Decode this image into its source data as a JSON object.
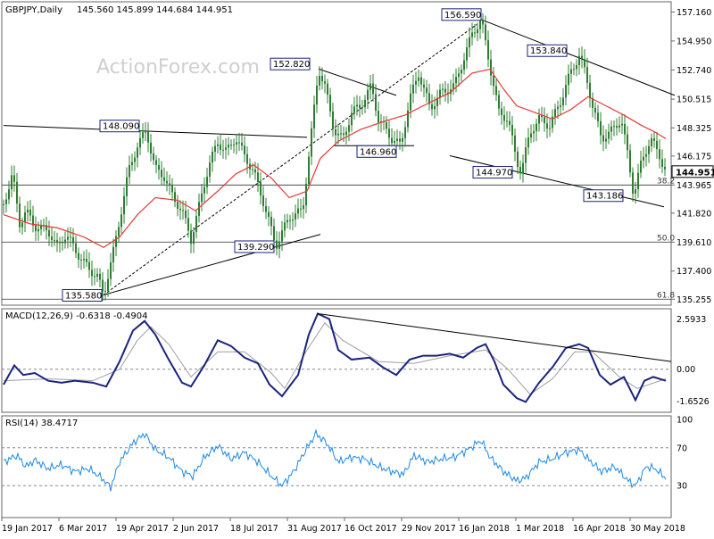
{
  "header": {
    "symbol": "GBPJPY,Daily",
    "ohlc": "145.560 145.899 144.684 144.951"
  },
  "watermark": "ActionForex.com",
  "colors": {
    "candle": "#2e7d32",
    "ema": "#e53935",
    "macd_line": "#1a237e",
    "macd_signal": "#9e9e9e",
    "rsi": "#1e88e5",
    "trendline": "#000000",
    "label_box_border": "#1a237e",
    "last_price_bg": "#ffffff"
  },
  "chart_data": [
    {
      "type": "candlestick",
      "title": "GBPJPY,Daily",
      "ylim": [
        135.255,
        157.5
      ],
      "y_ticks": [
        "157.160",
        "154.950",
        "152.740",
        "150.515",
        "148.325",
        "146.175",
        "143.965",
        "141.820",
        "139.610",
        "137.400",
        "135.255"
      ],
      "x_ticks": [
        "19 Jan 2017",
        "6 Mar 2017",
        "19 Apr 2017",
        "2 Jun 2017",
        "18 Jul 2017",
        "31 Aug 2017",
        "16 Oct 2017",
        "29 Nov 2017",
        "16 Jan 2018",
        "1 Mar 2018",
        "16 Apr 2018",
        "30 May 2018"
      ],
      "last_price": "144.951",
      "price_path": [
        [
          0,
          142.5
        ],
        [
          10,
          144.8
        ],
        [
          18,
          141.0
        ],
        [
          25,
          142.0
        ],
        [
          35,
          140.8
        ],
        [
          50,
          140.5
        ],
        [
          60,
          139.2
        ],
        [
          70,
          140.2
        ],
        [
          85,
          138.5
        ],
        [
          95,
          137.6
        ],
        [
          105,
          137.0
        ],
        [
          112,
          135.58
        ],
        [
          125,
          139.5
        ],
        [
          140,
          145.0
        ],
        [
          150,
          147.0
        ],
        [
          160,
          148.09
        ],
        [
          170,
          145.2
        ],
        [
          180,
          144.6
        ],
        [
          190,
          143.0
        ],
        [
          200,
          142.0
        ],
        [
          210,
          139.8
        ],
        [
          220,
          142.6
        ],
        [
          230,
          145.5
        ],
        [
          240,
          147.2
        ],
        [
          250,
          146.5
        ],
        [
          260,
          147.6
        ],
        [
          270,
          146.2
        ],
        [
          280,
          145.0
        ],
        [
          292,
          142.5
        ],
        [
          305,
          139.29
        ],
        [
          320,
          141.5
        ],
        [
          335,
          142.0
        ],
        [
          345,
          148.0
        ],
        [
          353,
          152.82
        ],
        [
          360,
          151.5
        ],
        [
          370,
          148.2
        ],
        [
          380,
          147.4
        ],
        [
          390,
          149.5
        ],
        [
          400,
          150.0
        ],
        [
          412,
          151.5
        ],
        [
          420,
          149.0
        ],
        [
          435,
          147.5
        ],
        [
          445,
          146.96
        ],
        [
          455,
          150.5
        ],
        [
          465,
          152.5
        ],
        [
          478,
          149.8
        ],
        [
          490,
          151.0
        ],
        [
          505,
          151.5
        ],
        [
          515,
          153.5
        ],
        [
          525,
          155.5
        ],
        [
          535,
          156.59
        ],
        [
          545,
          153.0
        ],
        [
          555,
          149.5
        ],
        [
          565,
          149.0
        ],
        [
          575,
          145.8
        ],
        [
          580,
          144.97
        ],
        [
          590,
          148.0
        ],
        [
          600,
          149.0
        ],
        [
          612,
          148.5
        ],
        [
          625,
          150.5
        ],
        [
          635,
          152.5
        ],
        [
          645,
          153.84
        ],
        [
          652,
          152.5
        ],
        [
          660,
          150.0
        ],
        [
          670,
          147.5
        ],
        [
          680,
          148.0
        ],
        [
          692,
          149.0
        ],
        [
          700,
          146.0
        ],
        [
          706,
          143.186
        ],
        [
          715,
          145.8
        ],
        [
          725,
          147.5
        ],
        [
          735,
          146.2
        ],
        [
          742,
          144.951
        ]
      ],
      "ema_path": [
        [
          0,
          141.7
        ],
        [
          30,
          141.0
        ],
        [
          60,
          140.7
        ],
        [
          90,
          140.0
        ],
        [
          112,
          139.2
        ],
        [
          130,
          140.0
        ],
        [
          150,
          141.7
        ],
        [
          170,
          143.0
        ],
        [
          195,
          142.8
        ],
        [
          215,
          142.0
        ],
        [
          240,
          143.5
        ],
        [
          260,
          144.8
        ],
        [
          280,
          145.5
        ],
        [
          300,
          144.5
        ],
        [
          320,
          143.0
        ],
        [
          340,
          143.5
        ],
        [
          355,
          146.0
        ],
        [
          375,
          147.3
        ],
        [
          400,
          148.2
        ],
        [
          430,
          148.9
        ],
        [
          450,
          149.3
        ],
        [
          470,
          150.0
        ],
        [
          500,
          151.0
        ],
        [
          525,
          152.5
        ],
        [
          545,
          152.8
        ],
        [
          560,
          151.3
        ],
        [
          575,
          150.0
        ],
        [
          595,
          149.5
        ],
        [
          615,
          149.0
        ],
        [
          635,
          149.7
        ],
        [
          655,
          150.7
        ],
        [
          675,
          150.0
        ],
        [
          695,
          149.3
        ],
        [
          715,
          148.5
        ],
        [
          730,
          148.0
        ],
        [
          742,
          147.5
        ]
      ],
      "annotations": [
        "156.590",
        "153.840",
        "152.820",
        "148.090",
        "146.960",
        "144.970",
        "143.186",
        "139.290",
        "135.580"
      ],
      "fib_levels": [
        {
          "label": "38.2",
          "price": 143.965
        },
        {
          "label": "50.0",
          "price": 139.61
        },
        {
          "label": "61.8",
          "price": 135.255
        }
      ]
    },
    {
      "type": "line",
      "title": "MACD(12,26,9) -0.6318 -0.4904",
      "y_ticks": [
        "2.5933",
        "0.00",
        "-1.6526"
      ],
      "ylim": [
        -2.0,
        2.9
      ],
      "macd_path": [
        [
          0,
          -0.8
        ],
        [
          12,
          0.2
        ],
        [
          22,
          -0.3
        ],
        [
          35,
          -0.2
        ],
        [
          50,
          -0.6
        ],
        [
          65,
          -0.7
        ],
        [
          80,
          -0.6
        ],
        [
          100,
          -0.7
        ],
        [
          115,
          -0.9
        ],
        [
          130,
          0.4
        ],
        [
          145,
          2.0
        ],
        [
          158,
          2.5
        ],
        [
          170,
          1.8
        ],
        [
          185,
          0.5
        ],
        [
          200,
          -0.7
        ],
        [
          210,
          -0.9
        ],
        [
          225,
          0.2
        ],
        [
          240,
          1.5
        ],
        [
          255,
          1.2
        ],
        [
          270,
          0.6
        ],
        [
          285,
          0.3
        ],
        [
          298,
          -0.8
        ],
        [
          312,
          -1.4
        ],
        [
          330,
          -0.3
        ],
        [
          342,
          1.8
        ],
        [
          352,
          2.88
        ],
        [
          365,
          2.6
        ],
        [
          375,
          1.0
        ],
        [
          390,
          0.5
        ],
        [
          410,
          0.6
        ],
        [
          425,
          0.1
        ],
        [
          440,
          -0.3
        ],
        [
          455,
          0.5
        ],
        [
          470,
          0.7
        ],
        [
          485,
          0.7
        ],
        [
          500,
          0.8
        ],
        [
          515,
          0.6
        ],
        [
          530,
          1.1
        ],
        [
          540,
          1.3
        ],
        [
          550,
          0.4
        ],
        [
          560,
          -0.8
        ],
        [
          575,
          -1.5
        ],
        [
          585,
          -1.7
        ],
        [
          600,
          -0.7
        ],
        [
          615,
          0.1
        ],
        [
          630,
          1.1
        ],
        [
          645,
          1.3
        ],
        [
          655,
          1.1
        ],
        [
          668,
          -0.3
        ],
        [
          680,
          -0.8
        ],
        [
          695,
          -0.4
        ],
        [
          708,
          -1.6
        ],
        [
          718,
          -0.6
        ],
        [
          728,
          -0.4
        ],
        [
          742,
          -0.6
        ]
      ],
      "signal_path": [
        [
          0,
          -0.6
        ],
        [
          50,
          -0.5
        ],
        [
          100,
          -0.6
        ],
        [
          130,
          0.0
        ],
        [
          150,
          1.5
        ],
        [
          165,
          2.2
        ],
        [
          185,
          1.3
        ],
        [
          210,
          -0.4
        ],
        [
          240,
          0.9
        ],
        [
          270,
          0.9
        ],
        [
          300,
          -0.2
        ],
        [
          315,
          -1.0
        ],
        [
          340,
          1.0
        ],
        [
          360,
          2.4
        ],
        [
          380,
          1.5
        ],
        [
          420,
          0.4
        ],
        [
          460,
          0.3
        ],
        [
          500,
          0.7
        ],
        [
          540,
          1.0
        ],
        [
          565,
          0.0
        ],
        [
          590,
          -1.3
        ],
        [
          615,
          -0.5
        ],
        [
          640,
          0.9
        ],
        [
          660,
          0.9
        ],
        [
          690,
          -0.4
        ],
        [
          710,
          -1.0
        ],
        [
          742,
          -0.5
        ]
      ]
    },
    {
      "type": "line",
      "title": "RSI(14) 38.4717",
      "y_ticks": [
        "100",
        "70",
        "30"
      ],
      "ylim": [
        0,
        100
      ],
      "rsi_path": [
        [
          0,
          55
        ],
        [
          15,
          62
        ],
        [
          25,
          50
        ],
        [
          35,
          57
        ],
        [
          50,
          48
        ],
        [
          65,
          52
        ],
        [
          80,
          45
        ],
        [
          95,
          48
        ],
        [
          110,
          38
        ],
        [
          120,
          28
        ],
        [
          130,
          55
        ],
        [
          145,
          75
        ],
        [
          158,
          85
        ],
        [
          170,
          68
        ],
        [
          185,
          60
        ],
        [
          200,
          45
        ],
        [
          212,
          40
        ],
        [
          225,
          60
        ],
        [
          240,
          72
        ],
        [
          255,
          58
        ],
        [
          270,
          65
        ],
        [
          285,
          55
        ],
        [
          300,
          40
        ],
        [
          312,
          30
        ],
        [
          325,
          45
        ],
        [
          340,
          70
        ],
        [
          350,
          85
        ],
        [
          362,
          75
        ],
        [
          375,
          55
        ],
        [
          390,
          60
        ],
        [
          405,
          58
        ],
        [
          420,
          50
        ],
        [
          435,
          45
        ],
        [
          448,
          42
        ],
        [
          460,
          62
        ],
        [
          475,
          55
        ],
        [
          490,
          58
        ],
        [
          505,
          60
        ],
        [
          520,
          68
        ],
        [
          535,
          78
        ],
        [
          545,
          60
        ],
        [
          560,
          45
        ],
        [
          575,
          35
        ],
        [
          585,
          38
        ],
        [
          600,
          55
        ],
        [
          615,
          58
        ],
        [
          630,
          65
        ],
        [
          645,
          68
        ],
        [
          655,
          58
        ],
        [
          670,
          45
        ],
        [
          685,
          50
        ],
        [
          700,
          35
        ],
        [
          708,
          30
        ],
        [
          720,
          50
        ],
        [
          730,
          48
        ],
        [
          742,
          38
        ]
      ]
    }
  ]
}
